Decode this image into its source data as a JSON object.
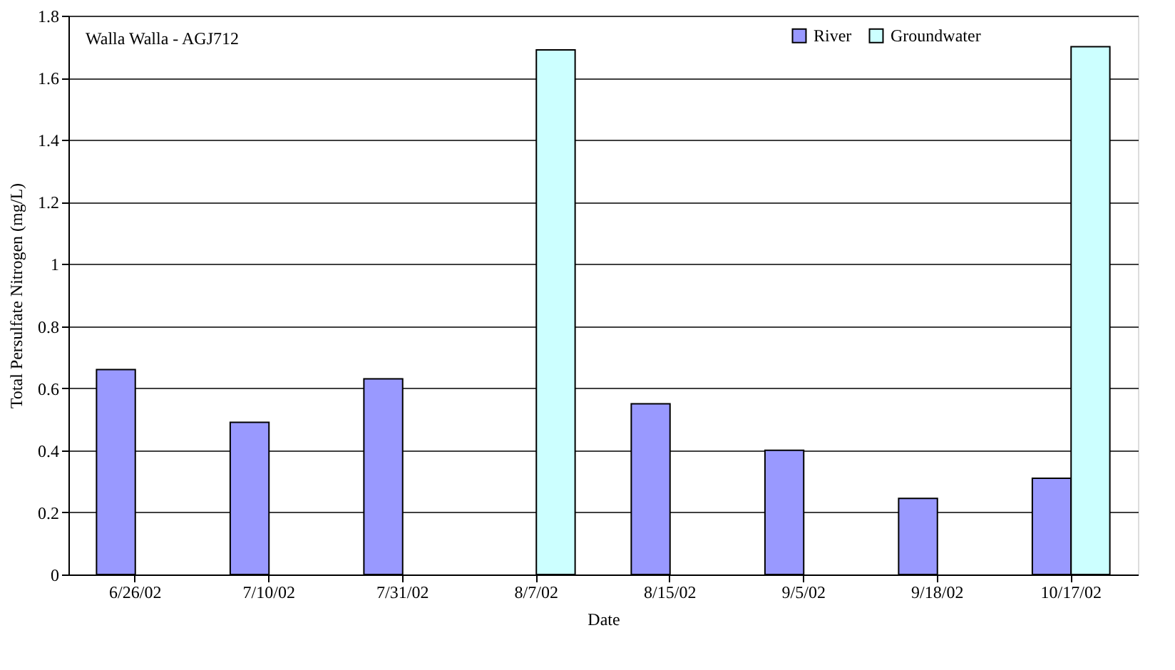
{
  "chart_data": {
    "type": "bar",
    "xlabel": "Date",
    "ylabel": "Total Persulfate Nitrogen (mg/L)",
    "annotations": [
      "Walla Walla - AGJ712"
    ],
    "categories": [
      "6/26/02",
      "7/10/02",
      "7/31/02",
      "8/7/02",
      "8/15/02",
      "9/5/02",
      "9/18/02",
      "10/17/02"
    ],
    "series": [
      {
        "name": "River",
        "color": "#9999ff",
        "values": [
          0.66,
          0.49,
          0.63,
          null,
          0.55,
          0.4,
          0.245,
          0.31
        ]
      },
      {
        "name": "Groundwater",
        "color": "#ccffff",
        "values": [
          null,
          null,
          null,
          1.69,
          null,
          null,
          null,
          1.7
        ]
      }
    ],
    "ylim": [
      0,
      1.8
    ],
    "yticks": [
      0,
      0.2,
      0.4,
      0.6,
      0.8,
      1,
      1.2,
      1.4,
      1.6,
      1.8
    ],
    "grid": "y",
    "legend": "top right"
  }
}
